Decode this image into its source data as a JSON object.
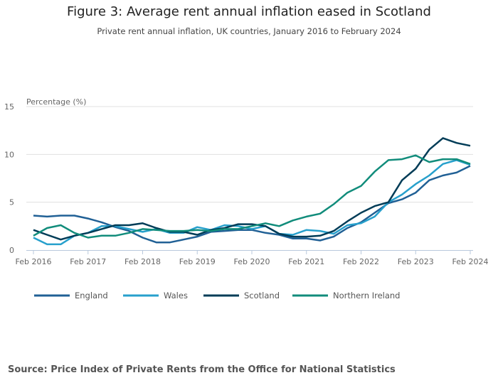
{
  "title": "Figure 3: Average rent annual inflation eased in Scotland",
  "subtitle": "Private rent annual inflation, UK countries, January 2016 to February 2024",
  "source": "Source: Price Index of Private Rents from the Office for National Statistics",
  "chart_data": {
    "type": "line",
    "title": "Figure 3: Average rent annual inflation eased in Scotland",
    "ylabel": "Percentage (%)",
    "ylim": [
      0,
      15
    ],
    "yticks": [
      "0",
      "5",
      "10",
      "15"
    ],
    "xticks": [
      "Feb 2016",
      "Feb 2017",
      "Feb 2018",
      "Feb 2019",
      "Feb 2020",
      "Feb 2021",
      "Feb 2022",
      "Feb 2023",
      "Feb 2024"
    ],
    "grid": true,
    "legend": "bottom",
    "x": [
      "Feb 2016",
      "May 2016",
      "Aug 2016",
      "Nov 2016",
      "Feb 2017",
      "May 2017",
      "Aug 2017",
      "Nov 2017",
      "Feb 2018",
      "May 2018",
      "Aug 2018",
      "Nov 2018",
      "Feb 2019",
      "May 2019",
      "Aug 2019",
      "Nov 2019",
      "Feb 2020",
      "May 2020",
      "Aug 2020",
      "Nov 2020",
      "Feb 2021",
      "May 2021",
      "Aug 2021",
      "Nov 2021",
      "Feb 2022",
      "May 2022",
      "Aug 2022",
      "Nov 2022",
      "Feb 2023",
      "May 2023",
      "Aug 2023",
      "Nov 2023",
      "Feb 2024"
    ],
    "series": [
      {
        "name": "England",
        "color": "#206095",
        "values": [
          3.6,
          3.5,
          3.6,
          3.6,
          3.3,
          2.9,
          2.4,
          2.0,
          1.3,
          0.8,
          0.8,
          1.1,
          1.4,
          1.9,
          2.0,
          2.1,
          2.1,
          1.8,
          1.6,
          1.2,
          1.2,
          1.0,
          1.4,
          2.3,
          2.9,
          3.9,
          4.9,
          5.3,
          6.0,
          7.3,
          7.8,
          8.1,
          8.8
        ]
      },
      {
        "name": "Wales",
        "color": "#27a0cc",
        "values": [
          1.3,
          0.6,
          0.6,
          1.5,
          1.8,
          2.5,
          2.5,
          2.2,
          1.9,
          2.2,
          1.8,
          1.8,
          2.4,
          2.1,
          2.6,
          2.5,
          2.2,
          2.5,
          1.7,
          1.6,
          2.1,
          2.0,
          1.7,
          2.6,
          2.8,
          3.5,
          5.0,
          5.8,
          6.9,
          7.8,
          9.0,
          9.4,
          8.9
        ]
      },
      {
        "name": "Scotland",
        "color": "#003c57",
        "values": [
          2.1,
          1.6,
          1.1,
          1.5,
          1.8,
          2.2,
          2.6,
          2.6,
          2.8,
          2.3,
          1.9,
          1.9,
          1.6,
          2.1,
          2.3,
          2.7,
          2.7,
          2.5,
          1.7,
          1.4,
          1.4,
          1.5,
          2.0,
          3.0,
          3.9,
          4.6,
          5.0,
          7.3,
          8.5,
          10.5,
          11.7,
          11.2,
          10.9
        ]
      },
      {
        "name": "Northern Ireland",
        "color": "#118c7b",
        "values": [
          1.5,
          2.3,
          2.6,
          1.8,
          1.3,
          1.5,
          1.5,
          1.8,
          2.2,
          2.1,
          2.0,
          2.0,
          2.1,
          2.0,
          2.2,
          2.2,
          2.5,
          2.8,
          2.5,
          3.1,
          3.5,
          3.8,
          4.8,
          6.0,
          6.7,
          8.2,
          9.4,
          9.5,
          9.9,
          9.2,
          9.5,
          9.5,
          9.0
        ]
      }
    ]
  }
}
